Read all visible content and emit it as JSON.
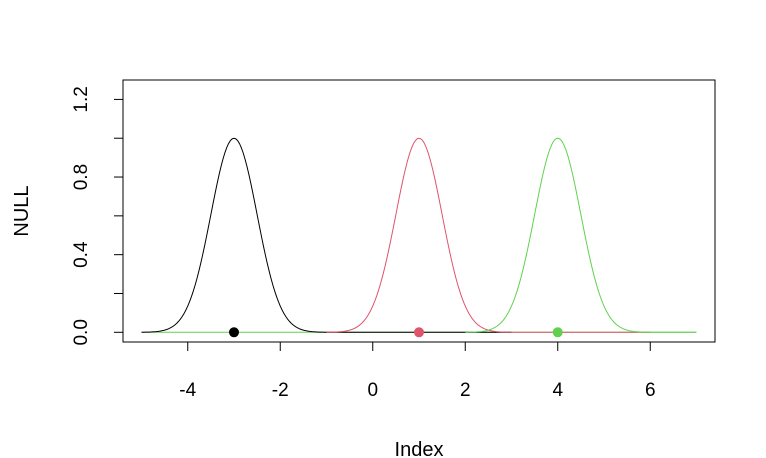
{
  "chart_data": {
    "type": "line",
    "title": "",
    "xlabel": "Index",
    "ylabel": "NULL",
    "xlim": [
      -5.4,
      7.4
    ],
    "ylim": [
      -0.05,
      1.3
    ],
    "x_ticks": [
      -4,
      -2,
      0,
      2,
      4,
      6
    ],
    "x_tick_labels": [
      "-4",
      "-2",
      "0",
      "2",
      "4",
      "6"
    ],
    "y_ticks": [
      0.0,
      0.2,
      0.4,
      0.6,
      0.8,
      1.0,
      1.2
    ],
    "y_tick_labels": [
      "0.0",
      "",
      "0.4",
      "",
      "0.8",
      "",
      "1.2"
    ],
    "grid": false,
    "legend": "none",
    "series": [
      {
        "color": "#000000",
        "center": -3,
        "sd": 0.5,
        "x_start": -5,
        "x_end": 3,
        "peak": 1.0
      },
      {
        "color": "#DF536B",
        "center": 1,
        "sd": 0.5,
        "x_start": -1,
        "x_end": 6,
        "peak": 1.0
      },
      {
        "color": "#61D04F",
        "center": 4,
        "sd": 0.5,
        "x_start": 2,
        "x_end": 7,
        "peak": 1.0
      }
    ],
    "baseline": {
      "y": 0,
      "x_start": -5,
      "x_end": 7,
      "color": "#61D04F"
    },
    "points": [
      {
        "x": -3,
        "y": 0,
        "color": "#000000"
      },
      {
        "x": 1,
        "y": 0,
        "color": "#DF536B"
      },
      {
        "x": 4,
        "y": 0,
        "color": "#61D04F"
      }
    ]
  }
}
